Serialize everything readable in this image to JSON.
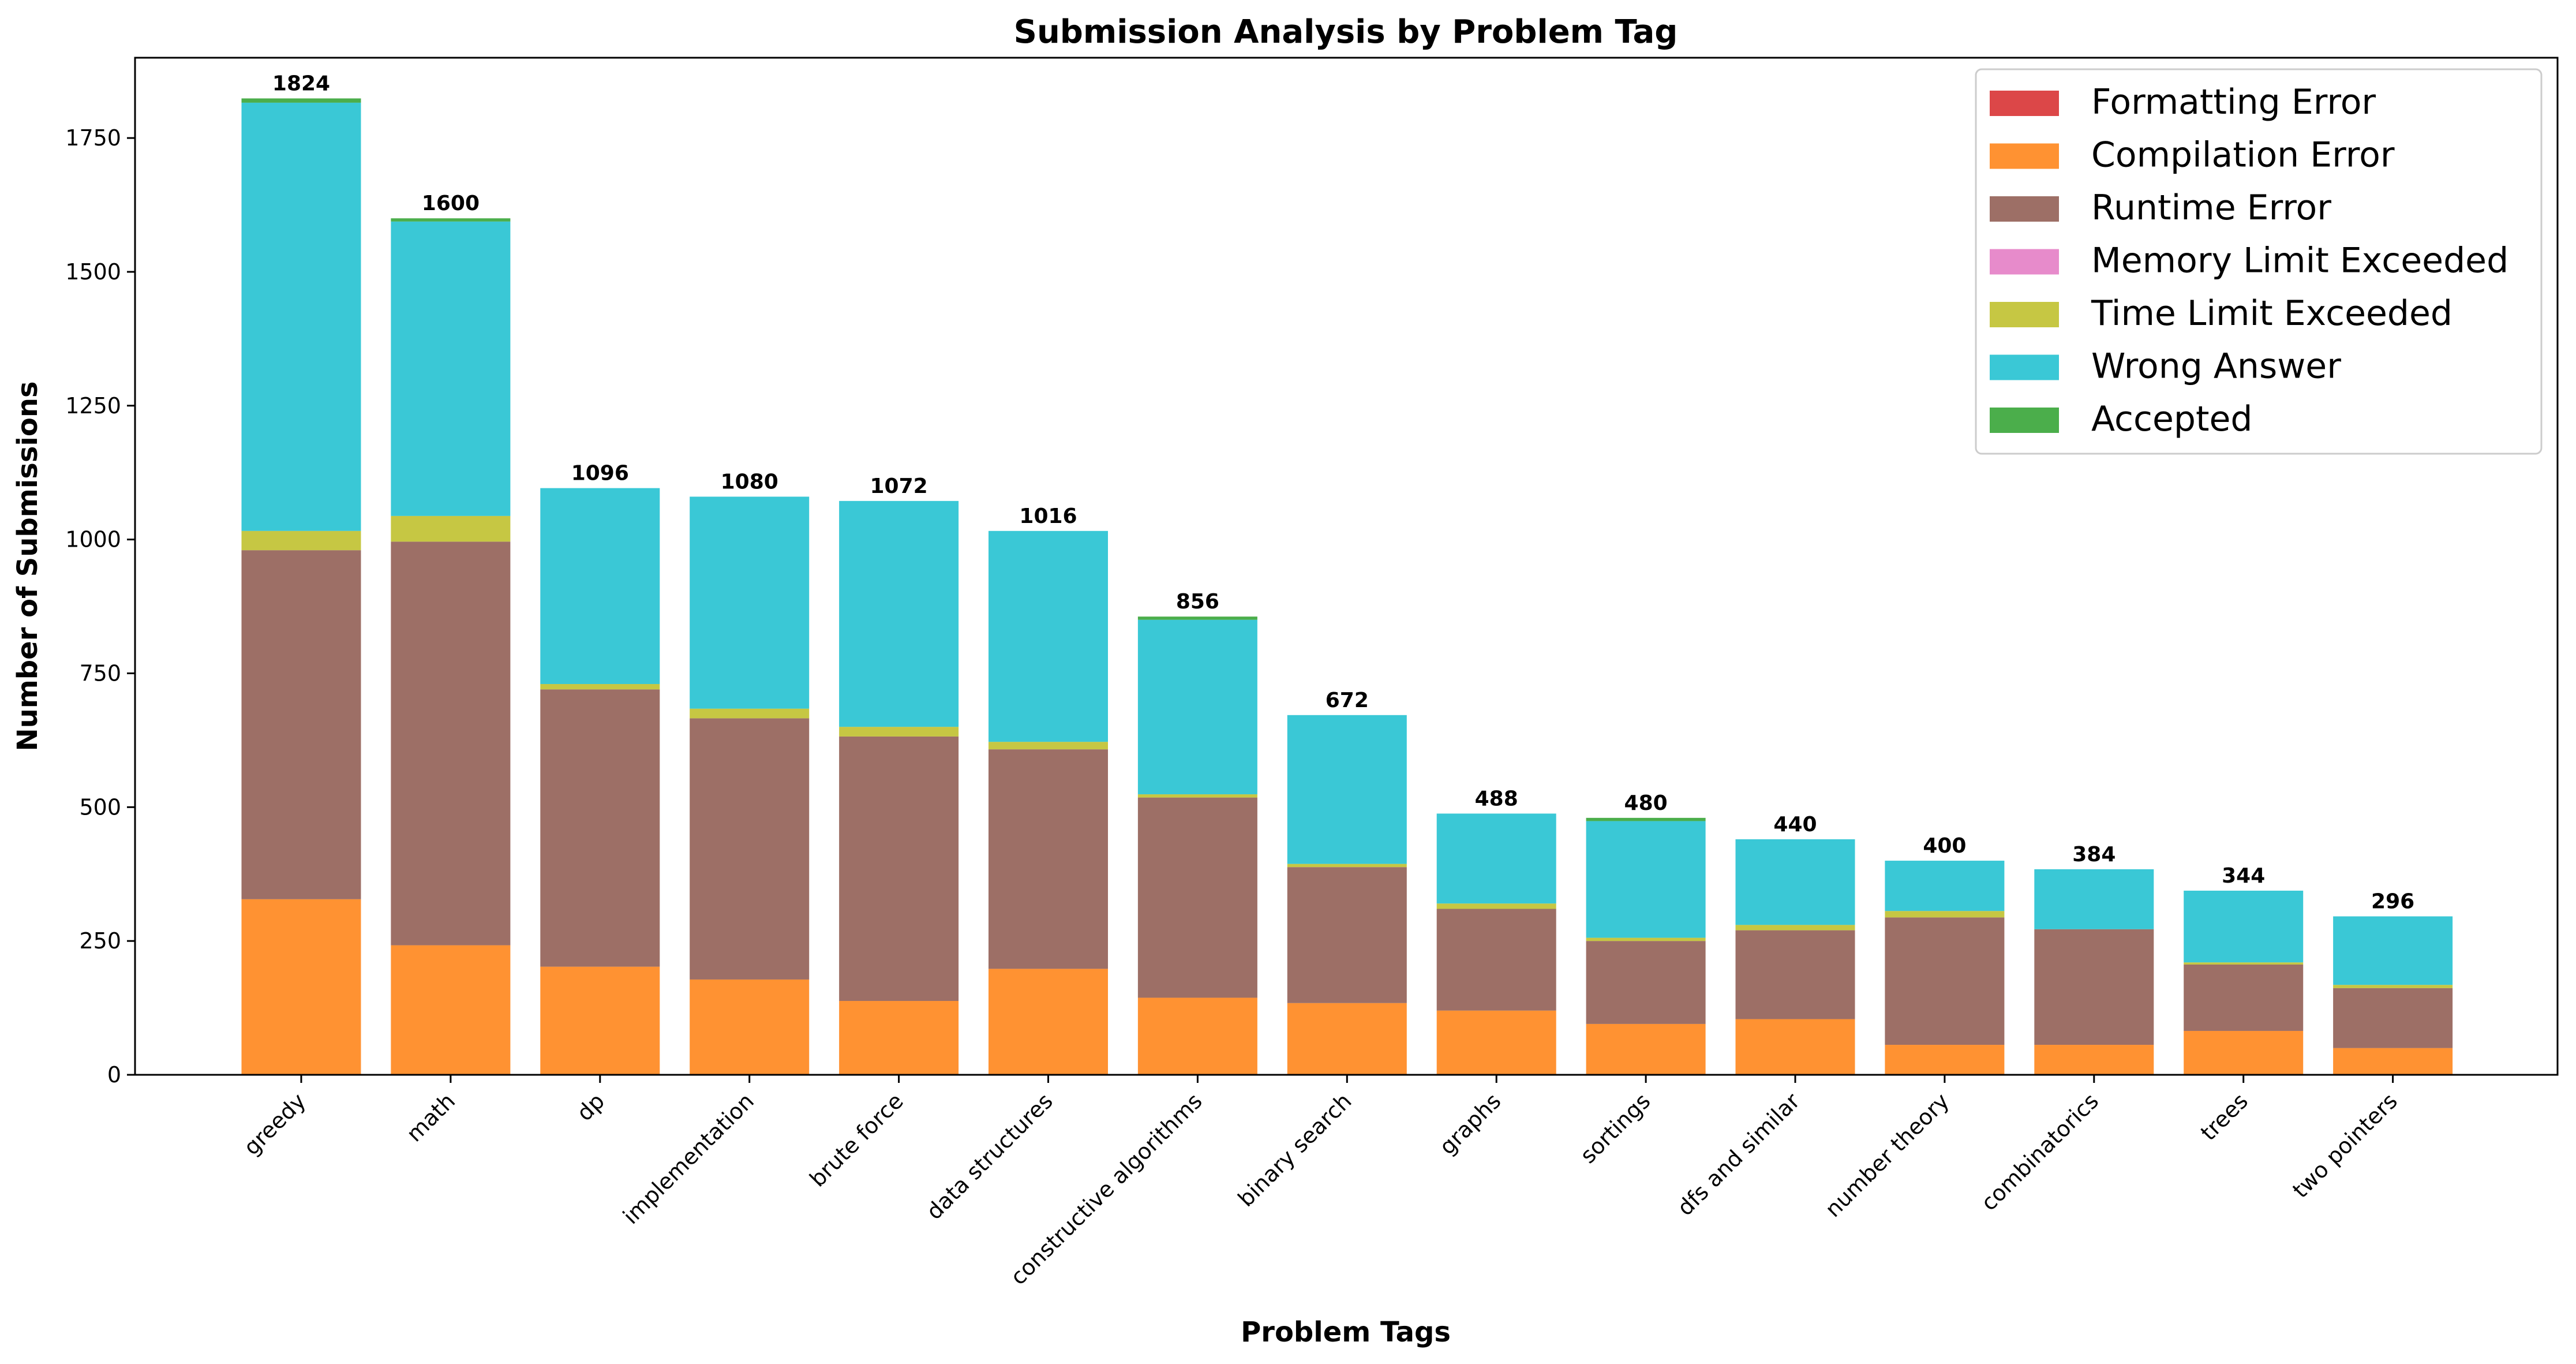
{
  "chart_data": {
    "type": "bar",
    "stacked": true,
    "title": "Submission Analysis by Problem Tag",
    "xlabel": "Problem Tags",
    "ylabel": "Number of Submissions",
    "ylim": [
      0,
      1900
    ],
    "yticks": [
      0,
      250,
      500,
      750,
      1000,
      1250,
      1500,
      1750
    ],
    "grid": false,
    "legend_position": "top-right",
    "categories": [
      "greedy",
      "math",
      "dp",
      "implementation",
      "brute force",
      "data structures",
      "constructive algorithms",
      "binary search",
      "graphs",
      "sortings",
      "dfs and similar",
      "number theory",
      "combinatorics",
      "trees",
      "two pointers"
    ],
    "totals": [
      1824,
      1600,
      1096,
      1080,
      1072,
      1016,
      856,
      672,
      488,
      480,
      440,
      400,
      384,
      344,
      296
    ],
    "series": [
      {
        "name": "Formatting Error",
        "color": "#d62728",
        "values": [
          0,
          0,
          0,
          0,
          0,
          0,
          0,
          0,
          0,
          0,
          0,
          0,
          0,
          0,
          0
        ]
      },
      {
        "name": "Compilation Error",
        "color": "#ff7f0e",
        "values": [
          328,
          242,
          202,
          178,
          138,
          198,
          144,
          134,
          120,
          95,
          104,
          56,
          56,
          82,
          50
        ]
      },
      {
        "name": "Runtime Error",
        "color": "#8c564b",
        "values": [
          652,
          754,
          518,
          488,
          494,
          410,
          374,
          254,
          190,
          155,
          166,
          238,
          216,
          124,
          112
        ]
      },
      {
        "name": "Memory Limit Exceeded",
        "color": "#e377c2",
        "values": [
          0,
          0,
          0,
          0,
          0,
          0,
          0,
          0,
          0,
          0,
          0,
          0,
          0,
          0,
          0
        ]
      },
      {
        "name": "Time Limit Exceeded",
        "color": "#bcbd22",
        "values": [
          36,
          48,
          10,
          18,
          18,
          14,
          6,
          6,
          10,
          6,
          10,
          12,
          0,
          4,
          6
        ]
      },
      {
        "name": "Wrong Answer",
        "color": "#17becf",
        "values": [
          800,
          550,
          366,
          396,
          422,
          394,
          326,
          278,
          168,
          218,
          160,
          94,
          112,
          134,
          128
        ]
      },
      {
        "name": "Accepted",
        "color": "#2ca02c",
        "values": [
          8,
          6,
          0,
          0,
          0,
          0,
          6,
          0,
          0,
          6,
          0,
          0,
          0,
          0,
          0
        ]
      }
    ]
  }
}
